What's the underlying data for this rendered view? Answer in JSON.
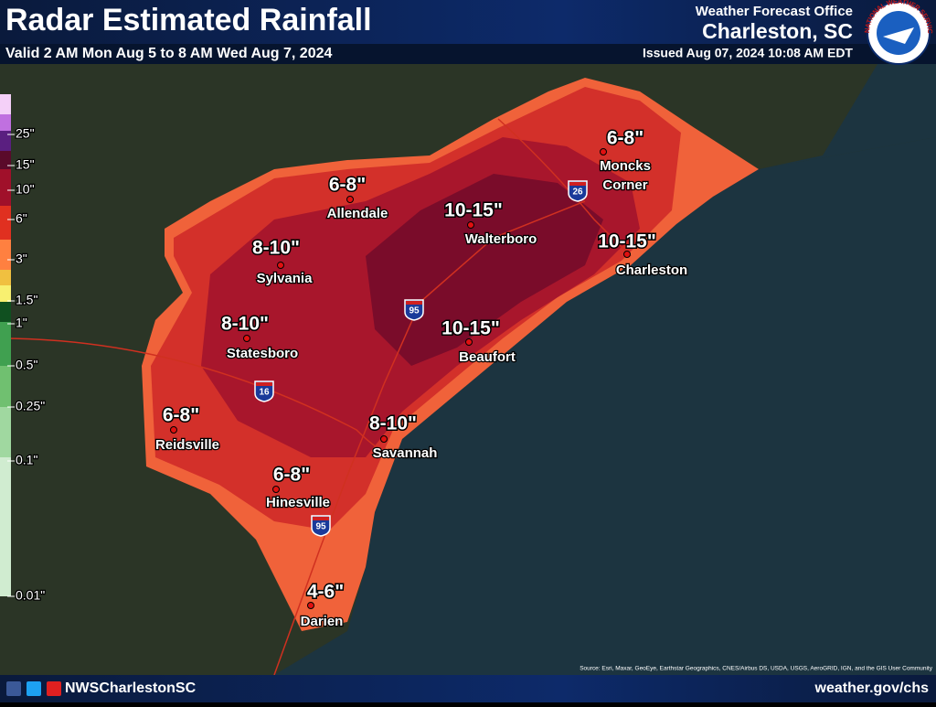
{
  "header": {
    "title": "Radar Estimated Rainfall",
    "valid": "Valid 2 AM Mon Aug 5 to 8 AM Wed Aug 7, 2024",
    "office": "Weather Forecast Office",
    "location": "Charleston, SC",
    "issued": "Issued Aug 07, 2024 10:08 AM EDT",
    "logo_text": "NATIONAL WEATHER SERVICE"
  },
  "legend": {
    "labels": [
      "25\"",
      "15\"",
      "10\"",
      "6\"",
      "3\"",
      "1.5\"",
      "1\"",
      "0.5\"",
      "0.25\"",
      "0.1\"",
      "0.01\""
    ]
  },
  "locations": [
    {
      "amount": "6-8\"",
      "city": [
        "Allendale"
      ]
    },
    {
      "amount": "8-10\"",
      "city": [
        "Sylvania"
      ]
    },
    {
      "amount": "8-10\"",
      "city": [
        "Statesboro"
      ]
    },
    {
      "amount": "6-8\"",
      "city": [
        "Reidsville"
      ]
    },
    {
      "amount": "6-8\"",
      "city": [
        "Hinesville"
      ]
    },
    {
      "amount": "4-6\"",
      "city": [
        "Darien"
      ]
    },
    {
      "amount": "8-10\"",
      "city": [
        "Savannah"
      ]
    },
    {
      "amount": "10-15\"",
      "city": [
        "Beaufort"
      ]
    },
    {
      "amount": "10-15\"",
      "city": [
        "Walterboro"
      ]
    },
    {
      "amount": "10-15\"",
      "city": [
        "Charleston"
      ]
    },
    {
      "amount": "6-8\"",
      "city": [
        "Moncks",
        "Corner"
      ]
    }
  ],
  "interstates": [
    "95",
    "26",
    "16",
    "95"
  ],
  "source": "Source: Esri, Maxar, GeoEye, Earthstar Geographics, CNES/Airbus DS, USDA, USGS, AeroGRID, IGN, and the GIS User Community",
  "footer": {
    "handle": "NWSCharlestonSC",
    "url": "weather.gov/chs"
  }
}
